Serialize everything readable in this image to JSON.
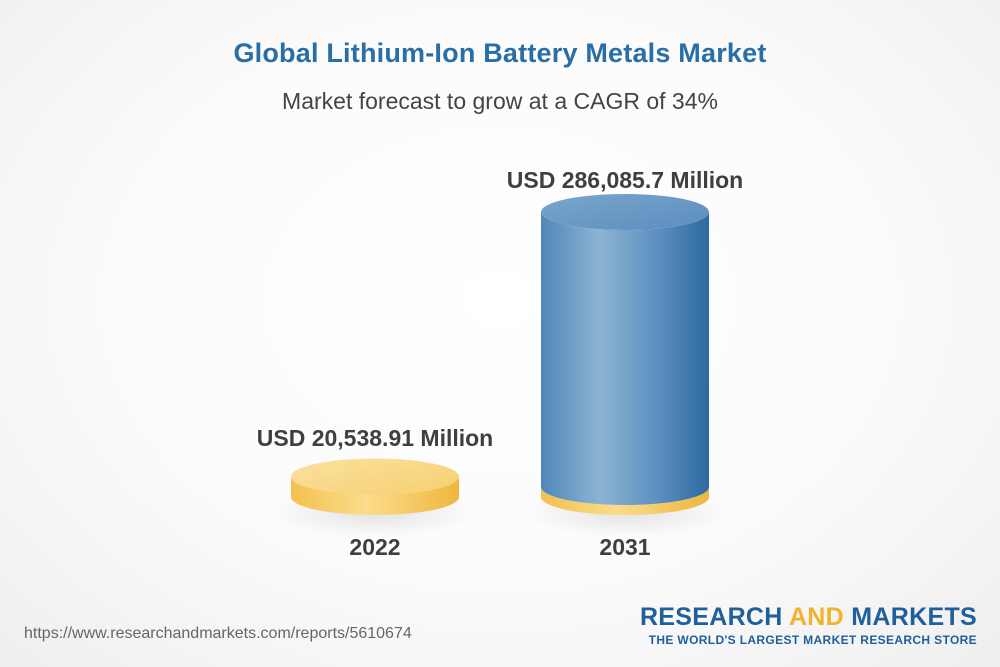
{
  "colors": {
    "title": "#2a6ea6",
    "bar_2022": "#f5cd6a",
    "bar_2031": "#5e92bf",
    "brand_blue": "#1f5f9b",
    "brand_accent": "#f3b22d"
  },
  "chart_data": {
    "type": "bar",
    "style": "3d-cylinder",
    "title": "Global Lithium-Ion Battery Metals Market",
    "subtitle": "Market forecast to grow at a CAGR of 34%",
    "categories": [
      "2022",
      "2031"
    ],
    "values": [
      20538.91,
      286085.7
    ],
    "value_labels": [
      "USD 20,538.91 Million",
      "USD 286,085.7 Million"
    ],
    "unit": "USD Million",
    "grid": false
  },
  "footer": {
    "source_url": "https://www.researchandmarkets.com/reports/5610674",
    "brand_part1": "RESEARCH ",
    "brand_part2": "AND",
    "brand_part3": " MARKETS",
    "brand_tagline": "THE WORLD'S LARGEST MARKET RESEARCH STORE"
  }
}
